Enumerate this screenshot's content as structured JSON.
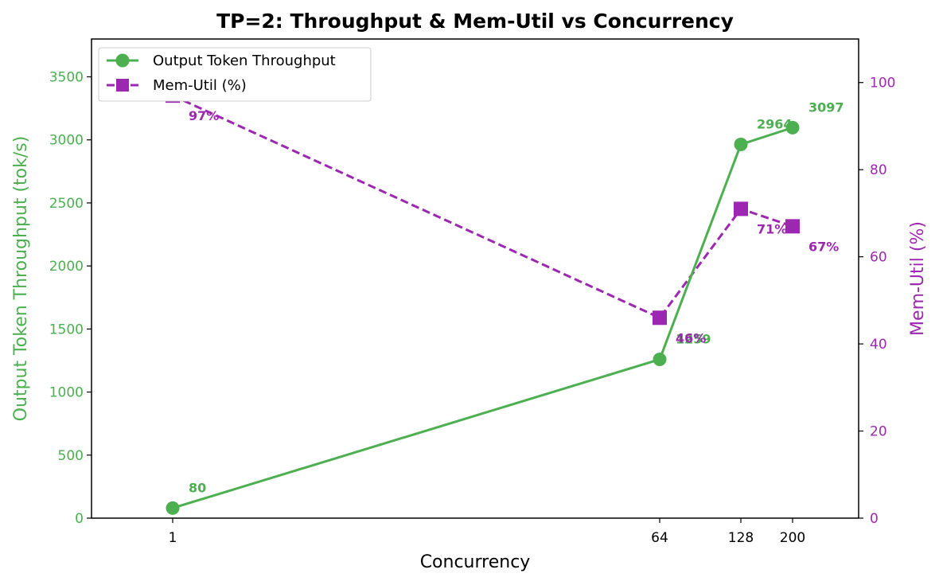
{
  "chart_data": {
    "type": "line",
    "title": "TP=2: Throughput & Mem-Util vs Concurrency",
    "xlabel": "Concurrency",
    "ylabel_left": "Output Token Throughput (tok/s)",
    "ylabel_right": "Mem-Util (%)",
    "x": [
      1,
      64,
      128,
      200
    ],
    "x_tick_labels": [
      "1",
      "64",
      "128",
      "200"
    ],
    "ylim_left": [
      0,
      3800
    ],
    "yticks_left": [
      "0",
      "500",
      "1000",
      "1500",
      "2000",
      "2500",
      "3000",
      "3500"
    ],
    "ylim_right": [
      0,
      110
    ],
    "yticks_right": [
      "0",
      "20",
      "40",
      "60",
      "80",
      "100"
    ],
    "legend_position": "upper-left",
    "grid": false,
    "series": [
      {
        "name": "Output Token Throughput",
        "axis": "left",
        "color": "#4caf50",
        "marker": "circle",
        "line_style": "solid",
        "values": [
          80,
          1259,
          2964,
          3097
        ],
        "labels": [
          "80",
          "1259",
          "2964",
          "3097"
        ]
      },
      {
        "name": "Mem-Util (%)",
        "axis": "right",
        "color": "#9c27b0",
        "marker": "square",
        "line_style": "dashed",
        "values": [
          97,
          46,
          71,
          67
        ],
        "labels": [
          "97%",
          "46%",
          "71%",
          "67%"
        ]
      }
    ]
  }
}
